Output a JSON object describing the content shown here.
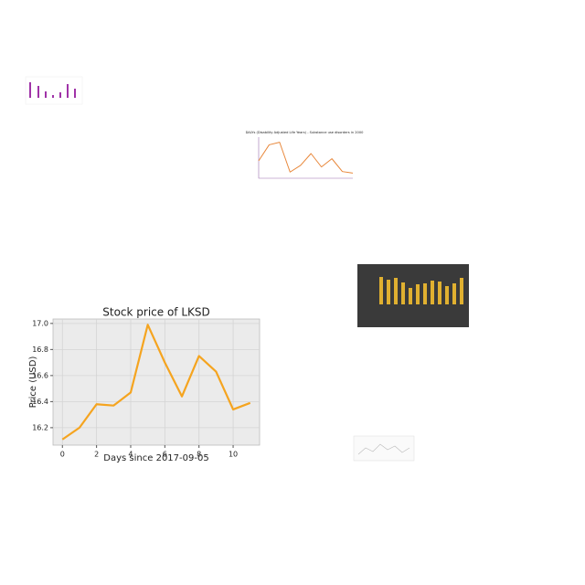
{
  "chart_data": [
    {
      "type": "line",
      "title": "Stock price of LKSD",
      "xlabel": "Days since 2017-09-05",
      "ylabel": "Price (USD)",
      "x": [
        0,
        1,
        2,
        3,
        4,
        5,
        6,
        7,
        8,
        9,
        10,
        11
      ],
      "series": [
        {
          "name": "LKSD",
          "color": "#f5a41f",
          "values": [
            16.11,
            16.2,
            16.38,
            16.37,
            16.47,
            16.99,
            16.7,
            16.44,
            16.75,
            16.63,
            16.34,
            16.39
          ]
        }
      ],
      "xlim": [
        -0.55,
        11.55
      ],
      "xticks": [
        0,
        2,
        4,
        6,
        8,
        10
      ],
      "ylim": [
        16.066,
        17.034
      ],
      "yticks": [
        {
          "value": 16.2,
          "label": "16.2"
        },
        {
          "value": 16.4,
          "label": "16.4"
        },
        {
          "value": 16.6,
          "label": "16.6"
        },
        {
          "value": 16.8,
          "label": "16.8"
        },
        {
          "value": 17.0,
          "label": "17.0"
        }
      ],
      "grid": true
    },
    {
      "type": "line",
      "title": "DALYs (Disability Adjusted Life Years) - Substance use disorders in 2000",
      "series": [
        {
          "name": "DALYs",
          "color": "#e8873a",
          "values": [
            340,
            650,
            700,
            120,
            250,
            480,
            220,
            380,
            130,
            100
          ]
        }
      ],
      "ylim": [
        0,
        800
      ]
    }
  ]
}
